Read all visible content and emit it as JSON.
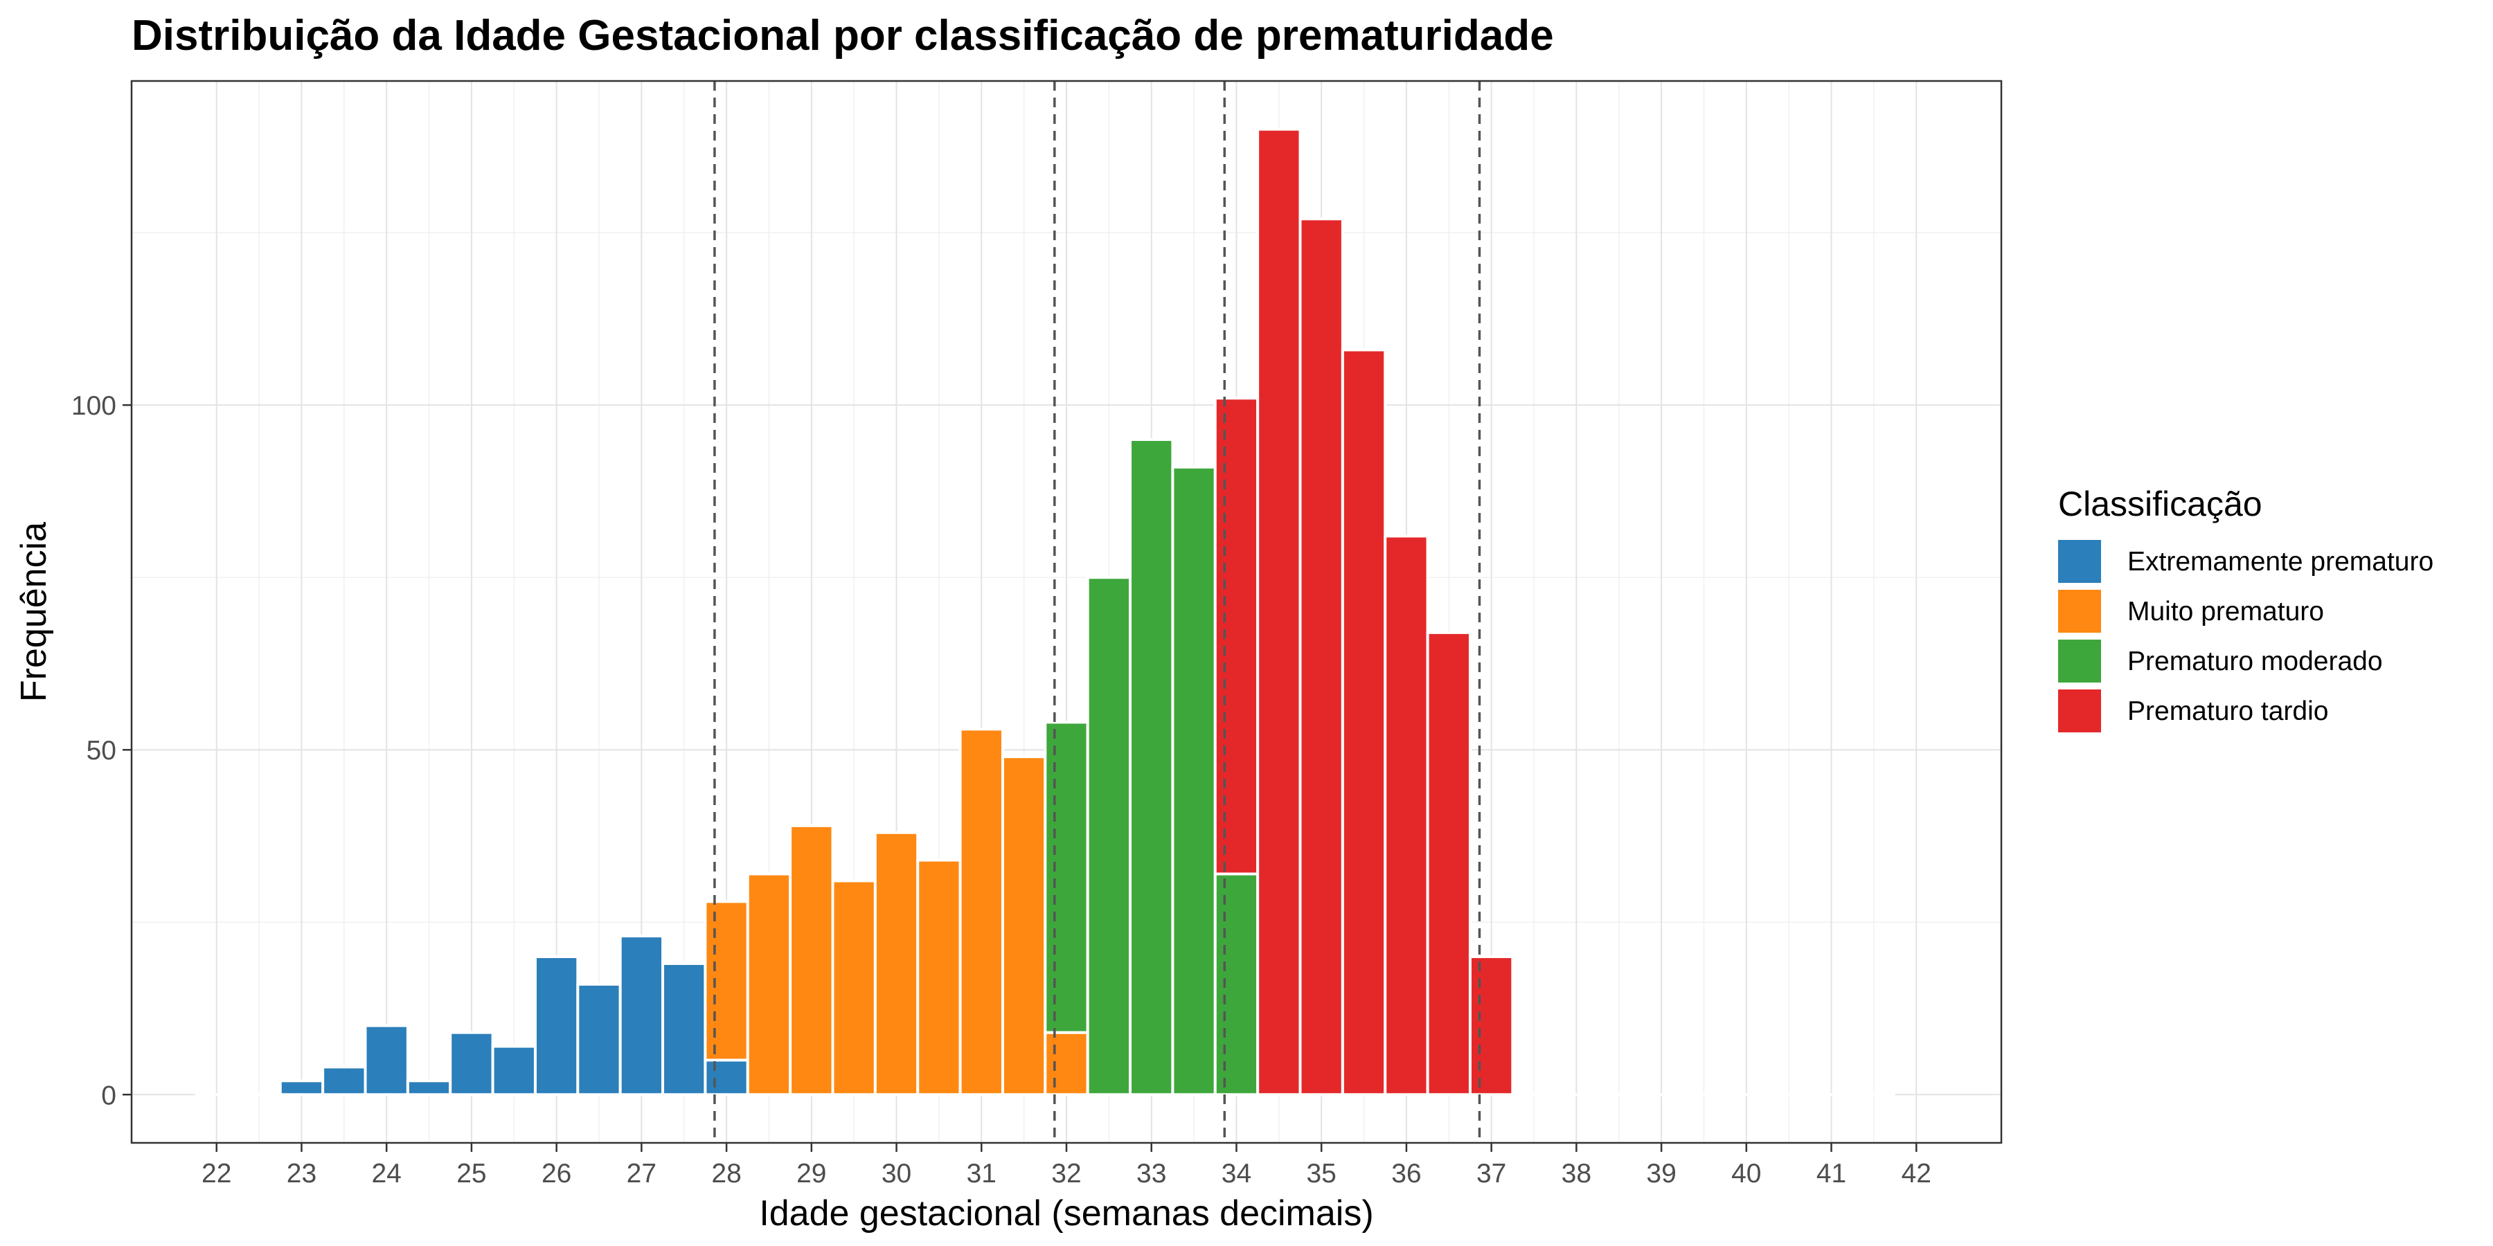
{
  "chart_data": {
    "type": "bar",
    "title": "Distribuição da Idade Gestacional por classificação de prematuridade",
    "xlabel": "Idade gestacional (semanas decimais)",
    "ylabel": "Frequência",
    "xlim": [
      21.0,
      43.0
    ],
    "ylim": [
      -7,
      147
    ],
    "x_ticks": [
      22,
      23,
      24,
      25,
      26,
      27,
      28,
      29,
      30,
      31,
      32,
      33,
      34,
      35,
      36,
      37,
      38,
      39,
      40,
      41,
      42
    ],
    "y_ticks": [
      0,
      50,
      100
    ],
    "grid": true,
    "bin_width": 0.5,
    "legend": {
      "title": "Classificação",
      "position": "right",
      "entries": [
        {
          "name": "Extremamente prematuro",
          "color": "#2b7fba"
        },
        {
          "name": "Muito prematuro",
          "color": "#ff8812"
        },
        {
          "name": "Prematuro moderado",
          "color": "#3ea73c"
        },
        {
          "name": "Prematuro tardio",
          "color": "#e4282a"
        }
      ]
    },
    "reference_lines_x": [
      27.86,
      31.86,
      33.86,
      36.86
    ],
    "x": [
      22.0,
      22.5,
      23.0,
      23.5,
      24.0,
      24.5,
      25.0,
      25.5,
      26.0,
      26.5,
      27.0,
      27.5,
      28.0,
      28.5,
      29.0,
      29.5,
      30.0,
      30.5,
      31.0,
      31.5,
      32.0,
      32.5,
      33.0,
      33.5,
      34.0,
      34.5,
      35.0,
      35.5,
      36.0,
      36.5,
      37.0,
      37.5,
      38.0,
      38.5,
      39.0,
      39.5,
      40.0,
      40.5,
      41.0,
      41.5
    ],
    "series": [
      {
        "name": "Extremamente prematuro",
        "values": [
          0,
          0,
          2,
          4,
          10,
          2,
          9,
          7,
          20,
          16,
          23,
          19,
          5,
          0,
          0,
          0,
          0,
          0,
          0,
          0,
          0,
          0,
          0,
          0,
          0,
          0,
          0,
          0,
          0,
          0,
          0,
          0,
          0,
          0,
          0,
          0,
          0,
          0,
          0,
          0
        ]
      },
      {
        "name": "Muito prematuro",
        "values": [
          0,
          0,
          0,
          0,
          0,
          0,
          0,
          0,
          0,
          0,
          0,
          0,
          23,
          32,
          39,
          31,
          38,
          34,
          53,
          49,
          9,
          0,
          0,
          0,
          0,
          0,
          0,
          0,
          0,
          0,
          0,
          0,
          0,
          0,
          0,
          0,
          0,
          0,
          0,
          0
        ]
      },
      {
        "name": "Prematuro moderado",
        "values": [
          0,
          0,
          0,
          0,
          0,
          0,
          0,
          0,
          0,
          0,
          0,
          0,
          0,
          0,
          0,
          0,
          0,
          0,
          0,
          0,
          45,
          75,
          95,
          91,
          32,
          0,
          0,
          0,
          0,
          0,
          0,
          0,
          0,
          0,
          0,
          0,
          0,
          0,
          0,
          0
        ]
      },
      {
        "name": "Prematuro tardio",
        "values": [
          0,
          0,
          0,
          0,
          0,
          0,
          0,
          0,
          0,
          0,
          0,
          0,
          0,
          0,
          0,
          0,
          0,
          0,
          0,
          0,
          0,
          0,
          0,
          0,
          69,
          140,
          127,
          108,
          81,
          67,
          20,
          0,
          0,
          0,
          0,
          0,
          0,
          0,
          0,
          0
        ]
      }
    ]
  }
}
